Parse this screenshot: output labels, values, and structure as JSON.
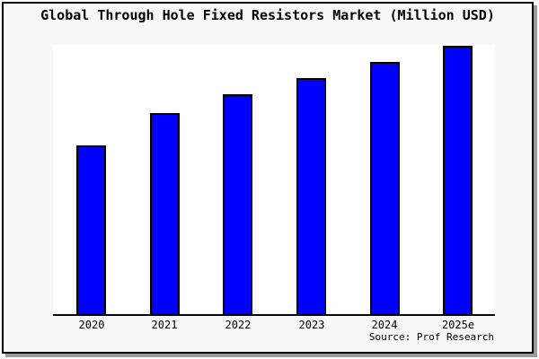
{
  "frame": {
    "background": "#f8f8f8",
    "border_color": "#000000",
    "shadow_color": "#9c9c9c"
  },
  "chart_data": {
    "type": "bar",
    "title": "Global Through Hole Fixed Resistors Market (Million USD)",
    "categories": [
      "2020",
      "2021",
      "2022",
      "2023",
      "2024",
      "2025e"
    ],
    "values": [
      63,
      75,
      82,
      88,
      94,
      100
    ],
    "value_note": "no y-axis or data labels shown; values estimated from bar heights with 2025e = 100",
    "xlabel": "",
    "ylabel": "",
    "ylim": [
      0,
      100.5
    ],
    "grid": false,
    "legend": false,
    "plot_bg": "#ffffff",
    "bar_color": "#0000ff",
    "bar_edge_color": "#000000",
    "source": "Source: Prof Research"
  }
}
